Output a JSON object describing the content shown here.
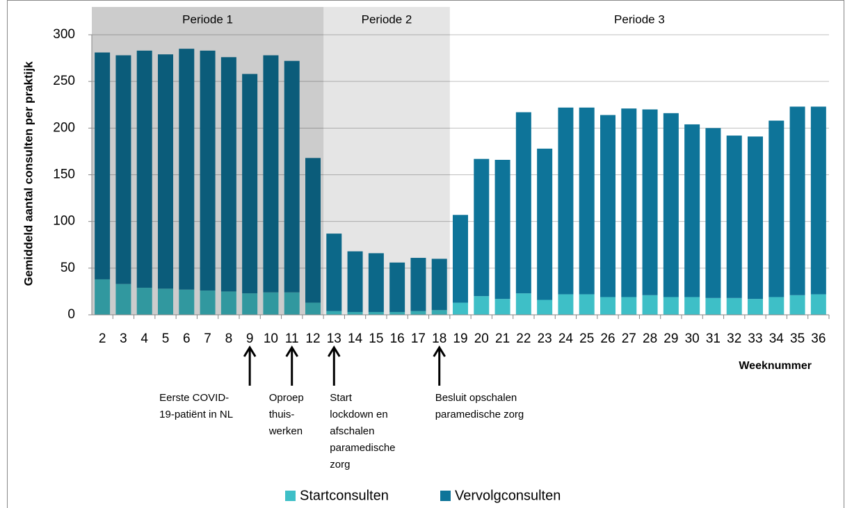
{
  "chart_data": {
    "type": "bar",
    "stacked": true,
    "ylabel": "Gemiddeld aantal consulten per praktijk",
    "xlabel": "Weeknummer",
    "categories": [
      "2",
      "3",
      "4",
      "5",
      "6",
      "7",
      "8",
      "9",
      "10",
      "11",
      "12",
      "13",
      "14",
      "15",
      "16",
      "17",
      "18",
      "19",
      "20",
      "21",
      "22",
      "23",
      "24",
      "25",
      "26",
      "27",
      "28",
      "29",
      "30",
      "31",
      "32",
      "33",
      "34",
      "35",
      "36"
    ],
    "series": [
      {
        "name": "Startconsulten",
        "color": "#3ebfc7",
        "values": [
          38,
          33,
          29,
          28,
          27,
          26,
          25,
          23,
          24,
          24,
          13,
          4,
          3,
          3,
          3,
          4,
          5,
          13,
          20,
          17,
          23,
          16,
          22,
          22,
          19,
          19,
          21,
          19,
          19,
          18,
          18,
          17,
          19,
          21,
          22
        ]
      },
      {
        "name": "Vervolgconsulten",
        "color": "#0e7499",
        "values": [
          243,
          245,
          254,
          251,
          258,
          257,
          251,
          235,
          254,
          248,
          155,
          83,
          65,
          63,
          53,
          57,
          55,
          94,
          147,
          149,
          194,
          162,
          200,
          200,
          195,
          202,
          199,
          197,
          185,
          182,
          174,
          174,
          189,
          202,
          201
        ]
      }
    ],
    "ylim": [
      0,
      300
    ],
    "yticks": [
      0,
      50,
      100,
      150,
      200,
      250,
      300
    ],
    "grid": true,
    "periods": [
      {
        "label": "Periode 1",
        "from": "2",
        "to": "12",
        "shade": 0.2
      },
      {
        "label": "Periode 2",
        "from": "13",
        "to": "18",
        "shade": 0.1
      },
      {
        "label": "Periode 3",
        "from": "19",
        "to": "36",
        "shade": 0
      }
    ],
    "annotations": [
      {
        "week": "9",
        "lines": [
          "Eerste COVID-",
          "19-patiënt in NL"
        ]
      },
      {
        "week": "11",
        "lines": [
          "Oproep",
          "thuis-",
          "werken"
        ]
      },
      {
        "week": "13",
        "lines": [
          "Start",
          "lockdown en",
          "afschalen",
          "paramedische",
          "zorg"
        ]
      },
      {
        "week": "18",
        "lines": [
          "Besluit opschalen",
          "paramedische zorg"
        ]
      }
    ],
    "legend": "bottom"
  }
}
